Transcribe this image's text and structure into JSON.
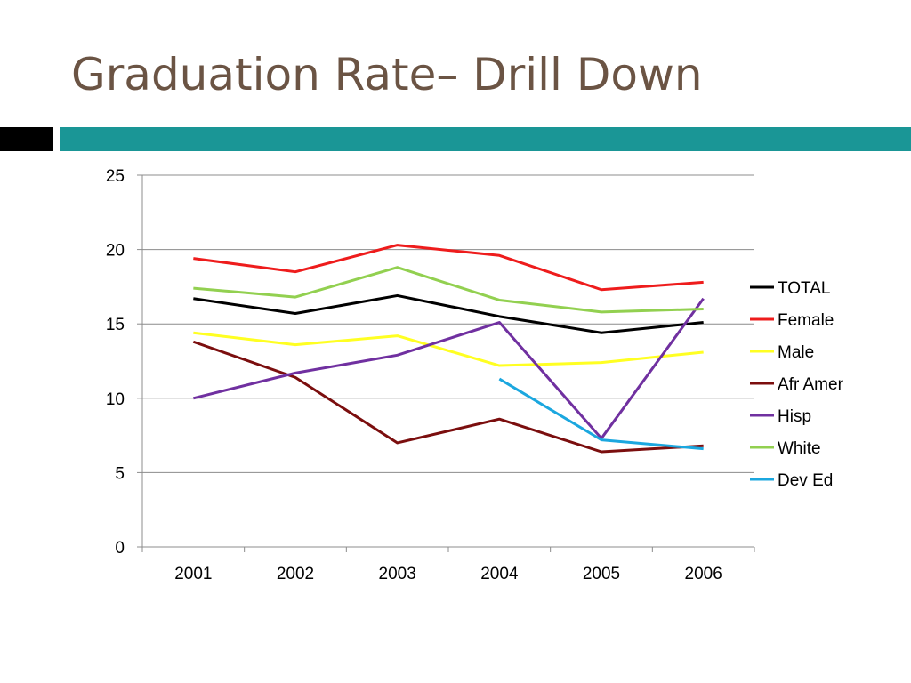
{
  "slide": {
    "title": "Graduation Rate– Drill Down",
    "accent_colors": {
      "title_text": "#6b5444",
      "left_bar": "#000000",
      "right_bar": "#1a9696"
    }
  },
  "chart_data": {
    "type": "line",
    "categories": [
      "2001",
      "2002",
      "2003",
      "2004",
      "2005",
      "2006"
    ],
    "ylim": [
      0,
      25
    ],
    "yticks": [
      0,
      5,
      10,
      15,
      20,
      25
    ],
    "grid": true,
    "legend_position": "right",
    "series": [
      {
        "name": "TOTAL",
        "color": "#000000",
        "values": [
          16.7,
          15.7,
          16.9,
          15.5,
          14.4,
          15.1
        ]
      },
      {
        "name": "Female",
        "color": "#ee1c1c",
        "values": [
          19.4,
          18.5,
          20.3,
          19.6,
          17.3,
          17.8
        ]
      },
      {
        "name": "Male",
        "color": "#ffff22",
        "values": [
          14.4,
          13.6,
          14.2,
          12.2,
          12.4,
          13.1
        ]
      },
      {
        "name": "Afr Amer",
        "color": "#7b0e0e",
        "values": [
          13.8,
          11.4,
          7.0,
          8.6,
          6.4,
          6.8
        ]
      },
      {
        "name": "Hisp",
        "color": "#7030a0",
        "values": [
          10.0,
          11.7,
          12.9,
          15.1,
          7.3,
          16.7
        ]
      },
      {
        "name": "White",
        "color": "#92d050",
        "values": [
          17.4,
          16.8,
          18.8,
          16.6,
          15.8,
          16.0
        ]
      },
      {
        "name": "Dev Ed",
        "color": "#1ba7df",
        "values": [
          null,
          null,
          null,
          11.3,
          7.2,
          6.6
        ]
      }
    ]
  }
}
